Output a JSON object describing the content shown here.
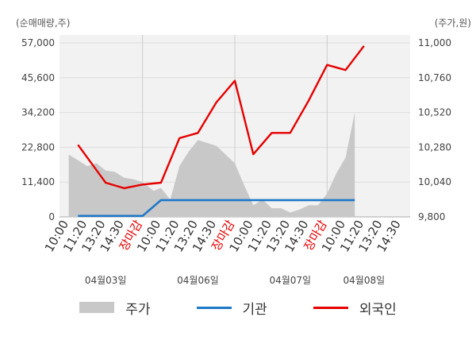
{
  "chart_data": {
    "type": "line",
    "y_left_unit": "(순매매량,주)",
    "y_right_unit": "(주가,원)",
    "y_left_ticks": [
      "57,000",
      "45,600",
      "34,200",
      "22,800",
      "11,400",
      "0"
    ],
    "y_right_ticks": [
      "11,000",
      "10,760",
      "10,520",
      "10,280",
      "10,040",
      "9,800"
    ],
    "ylim_left": [
      0,
      57000
    ],
    "ylim_right": [
      9800,
      11000
    ],
    "x_ticks": [
      {
        "label": "10:00",
        "close": false
      },
      {
        "label": "11:20",
        "close": false
      },
      {
        "label": "13:20",
        "close": false
      },
      {
        "label": "14:30",
        "close": false
      },
      {
        "label": "장마감",
        "close": true
      },
      {
        "label": "10:00",
        "close": false
      },
      {
        "label": "11:20",
        "close": false
      },
      {
        "label": "13:20",
        "close": false
      },
      {
        "label": "14:30",
        "close": false
      },
      {
        "label": "장마감",
        "close": true
      },
      {
        "label": "10:00",
        "close": false
      },
      {
        "label": "11:20",
        "close": false
      },
      {
        "label": "13:20",
        "close": false
      },
      {
        "label": "14:30",
        "close": false
      },
      {
        "label": "장마감",
        "close": true
      },
      {
        "label": "10:00",
        "close": false
      },
      {
        "label": "11:20",
        "close": false
      },
      {
        "label": "13:20",
        "close": false
      },
      {
        "label": "14:30",
        "close": false
      }
    ],
    "dates": [
      "04월03일",
      "04월06일",
      "04월07일",
      "04월08일"
    ],
    "series": [
      {
        "name": "주가",
        "axis": "right",
        "color": "#c8c8c8",
        "points": [
          [
            0,
            10230
          ],
          [
            0.5,
            10190
          ],
          [
            1,
            10150
          ],
          [
            1.5,
            10170
          ],
          [
            2,
            10120
          ],
          [
            2.5,
            10110
          ],
          [
            3,
            10070
          ],
          [
            3.5,
            10060
          ],
          [
            4,
            10040
          ],
          [
            4.5,
            9990
          ],
          [
            4.6,
            9980
          ],
          [
            5,
            10000
          ],
          [
            5.5,
            9920
          ],
          [
            6,
            10150
          ],
          [
            6.5,
            10250
          ],
          [
            7,
            10330
          ],
          [
            7.5,
            10310
          ],
          [
            8,
            10290
          ],
          [
            8.5,
            10230
          ],
          [
            9,
            10170
          ],
          [
            9.5,
            10020
          ],
          [
            10,
            9880
          ],
          [
            10.5,
            9920
          ],
          [
            11,
            9860
          ],
          [
            11.5,
            9860
          ],
          [
            12,
            9830
          ],
          [
            12.5,
            9850
          ],
          [
            13,
            9880
          ],
          [
            13.5,
            9880
          ],
          [
            14,
            9960
          ],
          [
            14.5,
            10100
          ],
          [
            15,
            10210
          ],
          [
            15.5,
            10520
          ]
        ]
      },
      {
        "name": "기관",
        "axis": "left",
        "color": "#1e78c8",
        "points": [
          [
            0.5,
            300
          ],
          [
            4,
            300
          ],
          [
            5,
            5500
          ],
          [
            15.5,
            5500
          ]
        ]
      },
      {
        "name": "외국인",
        "axis": "left",
        "color": "#e60000",
        "points": [
          [
            0.5,
            23600
          ],
          [
            2,
            11200
          ],
          [
            3,
            9400
          ],
          [
            4,
            10600
          ],
          [
            5,
            11200
          ],
          [
            6,
            25800
          ],
          [
            7,
            27500
          ],
          [
            8,
            37500
          ],
          [
            9,
            44600
          ],
          [
            10,
            20500
          ],
          [
            11,
            27500
          ],
          [
            12,
            27500
          ],
          [
            13,
            38100
          ],
          [
            14,
            49800
          ],
          [
            15,
            48100
          ],
          [
            16,
            56000
          ]
        ]
      }
    ]
  },
  "legend": [
    {
      "label": "주가",
      "color": "#c8c8c8",
      "kind": "area"
    },
    {
      "label": "기관",
      "color": "#1e78c8",
      "kind": "line"
    },
    {
      "label": "외국인",
      "color": "#e60000",
      "kind": "line"
    }
  ]
}
